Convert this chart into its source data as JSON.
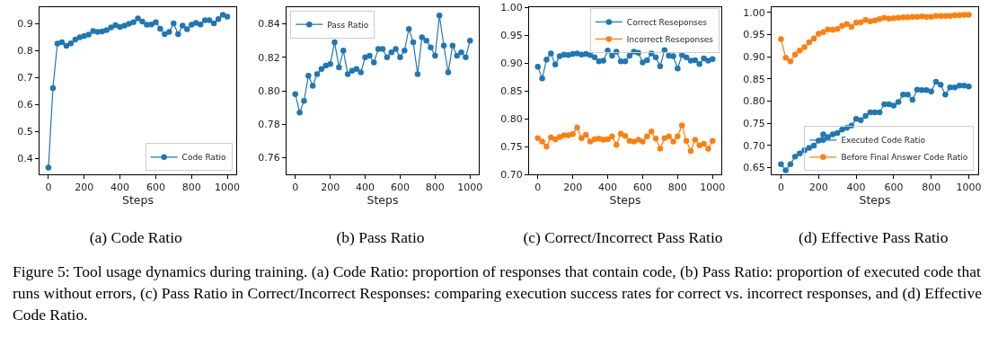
{
  "chart_data": [
    {
      "type": "line",
      "title": "(a) Code Ratio",
      "xlabel": "Steps",
      "marker": "circle",
      "legend": "bottom right",
      "grid": false,
      "x": [
        0,
        25,
        50,
        75,
        100,
        125,
        150,
        175,
        200,
        225,
        250,
        275,
        300,
        325,
        350,
        375,
        400,
        425,
        450,
        475,
        500,
        525,
        550,
        575,
        600,
        625,
        650,
        675,
        700,
        725,
        750,
        775,
        800,
        825,
        850,
        875,
        900,
        925,
        950,
        975,
        1000
      ],
      "xlim": [
        -50,
        1050
      ],
      "xticks": [
        0,
        200,
        400,
        600,
        800,
        1000
      ],
      "ylim": [
        0.34,
        0.96
      ],
      "yticks": [
        0.4,
        0.5,
        0.6,
        0.7,
        0.8,
        0.9
      ],
      "series": [
        {
          "name": "Code Ratio",
          "color": "#1f77b4",
          "values": [
            0.365,
            0.66,
            0.825,
            0.83,
            0.817,
            0.826,
            0.84,
            0.848,
            0.853,
            0.858,
            0.872,
            0.868,
            0.87,
            0.875,
            0.885,
            0.893,
            0.887,
            0.892,
            0.898,
            0.904,
            0.918,
            0.907,
            0.895,
            0.896,
            0.904,
            0.88,
            0.86,
            0.868,
            0.9,
            0.86,
            0.892,
            0.878,
            0.895,
            0.902,
            0.896,
            0.912,
            0.912,
            0.9,
            0.916,
            0.932,
            0.925
          ]
        }
      ]
    },
    {
      "type": "line",
      "title": "(b) Pass Ratio",
      "xlabel": "Steps",
      "marker": "circle",
      "legend": "top left",
      "grid": false,
      "x": [
        0,
        25,
        50,
        75,
        100,
        125,
        150,
        175,
        200,
        225,
        250,
        275,
        300,
        325,
        350,
        375,
        400,
        425,
        450,
        475,
        500,
        525,
        550,
        575,
        600,
        625,
        650,
        675,
        700,
        725,
        750,
        775,
        800,
        825,
        850,
        875,
        900,
        925,
        950,
        975,
        1000
      ],
      "xlim": [
        -50,
        1050
      ],
      "xticks": [
        0,
        200,
        400,
        600,
        800,
        1000
      ],
      "ylim": [
        0.75,
        0.85
      ],
      "yticks": [
        {
          "value": 0.76,
          "label": "0.76"
        },
        {
          "value": 0.78,
          "label": "0.78"
        },
        {
          "value": 0.8,
          "label": "0.80"
        },
        {
          "value": 0.82,
          "label": "0.82"
        },
        {
          "value": 0.84,
          "label": "0.84"
        }
      ],
      "series": [
        {
          "name": "Pass Ratio",
          "color": "#1f77b4",
          "values": [
            0.798,
            0.787,
            0.794,
            0.809,
            0.803,
            0.81,
            0.813,
            0.815,
            0.816,
            0.829,
            0.814,
            0.824,
            0.81,
            0.812,
            0.813,
            0.811,
            0.82,
            0.821,
            0.817,
            0.825,
            0.825,
            0.82,
            0.823,
            0.825,
            0.82,
            0.824,
            0.837,
            0.829,
            0.81,
            0.832,
            0.83,
            0.826,
            0.821,
            0.845,
            0.827,
            0.811,
            0.827,
            0.821,
            0.823,
            0.82,
            0.83
          ]
        }
      ]
    },
    {
      "type": "line",
      "title": "(c) Correct/Incorrect Pass Ratio",
      "xlabel": "Steps",
      "marker": "circle",
      "legend": "top right",
      "grid": false,
      "x": [
        0,
        25,
        50,
        75,
        100,
        125,
        150,
        175,
        200,
        225,
        250,
        275,
        300,
        325,
        350,
        375,
        400,
        425,
        450,
        475,
        500,
        525,
        550,
        575,
        600,
        625,
        650,
        675,
        700,
        725,
        750,
        775,
        800,
        825,
        850,
        875,
        900,
        925,
        950,
        975,
        1000
      ],
      "xlim": [
        -50,
        1050
      ],
      "xticks": [
        0,
        200,
        400,
        600,
        800,
        1000
      ],
      "ylim": [
        0.7,
        1.0
      ],
      "yticks": [
        {
          "value": 0.7,
          "label": "0.70"
        },
        {
          "value": 0.75,
          "label": "0.75"
        },
        {
          "value": 0.8,
          "label": "0.80"
        },
        {
          "value": 0.85,
          "label": "0.85"
        },
        {
          "value": 0.9,
          "label": "0.90"
        },
        {
          "value": 0.95,
          "label": "0.95"
        },
        {
          "value": 1.0,
          "label": "1.00"
        }
      ],
      "series": [
        {
          "name": "Correct Reseponses",
          "color": "#1f77b4",
          "values": [
            0.893,
            0.872,
            0.906,
            0.917,
            0.897,
            0.912,
            0.915,
            0.914,
            0.916,
            0.917,
            0.915,
            0.916,
            0.914,
            0.91,
            0.903,
            0.904,
            0.922,
            0.913,
            0.92,
            0.903,
            0.903,
            0.913,
            0.92,
            0.918,
            0.901,
            0.905,
            0.917,
            0.91,
            0.894,
            0.923,
            0.913,
            0.912,
            0.89,
            0.914,
            0.91,
            0.904,
            0.905,
            0.898,
            0.908,
            0.904,
            0.907
          ]
        },
        {
          "name": "Incorrect Reseponses",
          "color": "#ff7f0e",
          "values": [
            0.765,
            0.759,
            0.75,
            0.766,
            0.763,
            0.767,
            0.77,
            0.77,
            0.772,
            0.784,
            0.765,
            0.771,
            0.759,
            0.763,
            0.764,
            0.762,
            0.763,
            0.768,
            0.753,
            0.773,
            0.769,
            0.76,
            0.759,
            0.762,
            0.759,
            0.768,
            0.777,
            0.764,
            0.746,
            0.765,
            0.768,
            0.759,
            0.768,
            0.788,
            0.76,
            0.742,
            0.762,
            0.752,
            0.755,
            0.746,
            0.76
          ]
        }
      ]
    },
    {
      "type": "line",
      "title": "(d) Effective Pass Ratio",
      "xlabel": "Steps",
      "marker": "circle",
      "legend": "bottom right",
      "grid": false,
      "x": [
        0,
        25,
        50,
        75,
        100,
        125,
        150,
        175,
        200,
        225,
        250,
        275,
        300,
        325,
        350,
        375,
        400,
        425,
        450,
        475,
        500,
        525,
        550,
        575,
        600,
        625,
        650,
        675,
        700,
        725,
        750,
        775,
        800,
        825,
        850,
        875,
        900,
        925,
        950,
        975,
        1000
      ],
      "xlim": [
        -50,
        1050
      ],
      "xticks": [
        0,
        200,
        400,
        600,
        800,
        1000
      ],
      "ylim": [
        0.635,
        1.012
      ],
      "yticks": [
        {
          "value": 0.65,
          "label": "0.65"
        },
        {
          "value": 0.7,
          "label": "0.70"
        },
        {
          "value": 0.75,
          "label": "0.75"
        },
        {
          "value": 0.8,
          "label": "0.80"
        },
        {
          "value": 0.85,
          "label": "0.85"
        },
        {
          "value": 0.9,
          "label": "0.90"
        },
        {
          "value": 0.95,
          "label": "0.95"
        },
        {
          "value": 1.0,
          "label": "1.00"
        }
      ],
      "series": [
        {
          "name": "Executed Code Ratio",
          "color": "#1f77b4",
          "values": [
            0.658,
            0.644,
            0.658,
            0.675,
            0.682,
            0.689,
            0.695,
            0.7,
            0.711,
            0.725,
            0.719,
            0.725,
            0.728,
            0.736,
            0.74,
            0.745,
            0.76,
            0.757,
            0.767,
            0.775,
            0.775,
            0.775,
            0.793,
            0.793,
            0.79,
            0.798,
            0.815,
            0.815,
            0.803,
            0.826,
            0.825,
            0.825,
            0.822,
            0.844,
            0.837,
            0.815,
            0.831,
            0.831,
            0.835,
            0.835,
            0.833
          ]
        },
        {
          "name": "Before Final Answer Code Ratio",
          "color": "#ff7f0e",
          "values": [
            0.94,
            0.898,
            0.89,
            0.905,
            0.914,
            0.922,
            0.933,
            0.941,
            0.952,
            0.956,
            0.962,
            0.961,
            0.963,
            0.97,
            0.974,
            0.968,
            0.977,
            0.978,
            0.983,
            0.98,
            0.982,
            0.985,
            0.988,
            0.986,
            0.987,
            0.988,
            0.989,
            0.989,
            0.99,
            0.99,
            0.991,
            0.99,
            0.99,
            0.992,
            0.992,
            0.992,
            0.992,
            0.994,
            0.994,
            0.995,
            0.995
          ]
        }
      ]
    },
    {
      "type": "other",
      "annotations": [
        "Figure 5: Tool usage dynamics during training. (a) Code Ratio: proportion of responses that contain code, (b) Pass Ratio: proportion of executed code that runs without errors, (c) Pass Ratio in Correct/Incorrect Responses: comparing execution success rates for correct vs. incorrect responses, and (d) Effective Code Ratio."
      ]
    }
  ]
}
